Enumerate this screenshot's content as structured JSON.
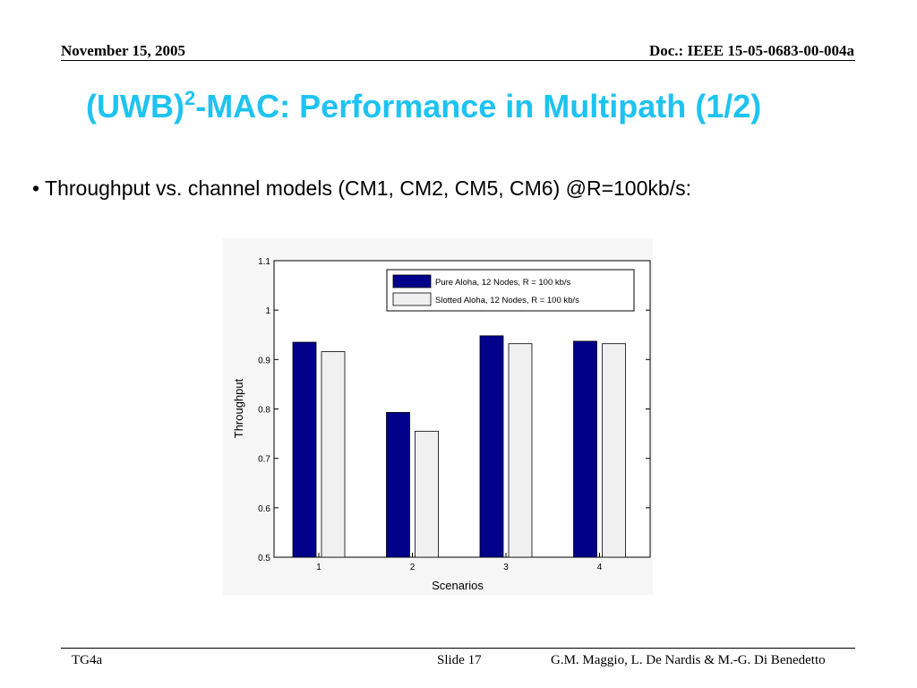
{
  "header": {
    "date": "November 15, 2005",
    "doc": "Doc.: IEEE 15-05-0683-00-004a"
  },
  "slide": {
    "title_main": "(UWB)",
    "title_sup": "2",
    "title_rest": "-MAC: Performance in Multipath  (1/2)",
    "bullet": "• Throughput vs. channel models (CM1, CM2, CM5, CM6) @R=100kb/s:"
  },
  "footer": {
    "left": "TG4a",
    "slide": "Slide 17",
    "authors": "G.M. Maggio, L. De Nardis & M.-G. Di Benedetto"
  },
  "colors": {
    "title": "#1ec3f0",
    "pure": "#00008b",
    "slotted": "#f0f0f0"
  },
  "chart_data": {
    "type": "bar",
    "categories": [
      "1",
      "2",
      "3",
      "4"
    ],
    "series": [
      {
        "name": "Pure Aloha, 12 Nodes, R = 100 kb/s",
        "values": [
          0.935,
          0.793,
          0.948,
          0.937
        ]
      },
      {
        "name": "Slotted Aloha, 12 Nodes, R = 100 kb/s",
        "values": [
          0.916,
          0.755,
          0.932,
          0.932
        ]
      }
    ],
    "xlabel": "Scenarios",
    "ylabel": "Throughput",
    "ylim": [
      0.5,
      1.1
    ],
    "yticks": [
      "0.5",
      "0.6",
      "0.7",
      "0.8",
      "0.9",
      "1",
      "1.1"
    ],
    "grid": false,
    "legend": "top-right"
  }
}
